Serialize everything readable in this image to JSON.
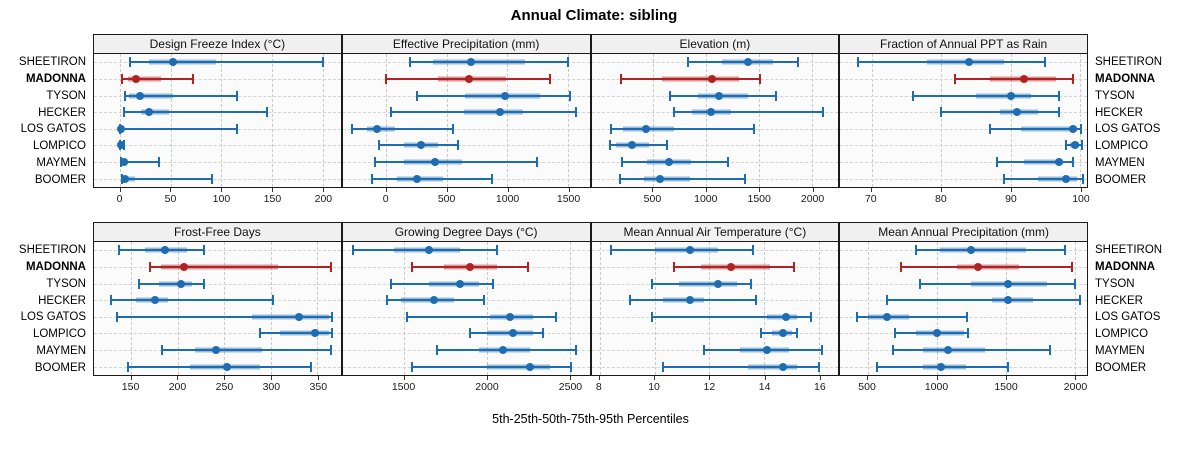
{
  "title": "Annual Climate: sibling",
  "footer": "5th-25th-50th-75th-95th Percentiles",
  "percentile_labels": [
    "5th",
    "25th",
    "50th",
    "75th",
    "95th"
  ],
  "colors": {
    "series": "#1e6db2",
    "highlight": "#b22222",
    "grid": "#cbcbcb",
    "strip_bg": "#f0f0f0",
    "panel_border": "#1a1a1a"
  },
  "sites": [
    {
      "name": "SHEETIRON",
      "highlight": false
    },
    {
      "name": "MADONNA",
      "highlight": true
    },
    {
      "name": "TYSON",
      "highlight": false
    },
    {
      "name": "HECKER",
      "highlight": false
    },
    {
      "name": "LOS GATOS",
      "highlight": false
    },
    {
      "name": "LOMPICO",
      "highlight": false
    },
    {
      "name": "MAYMEN",
      "highlight": false
    },
    {
      "name": "BOOMER",
      "highlight": false
    }
  ],
  "chart_data": [
    {
      "type": "segplot-percentiles",
      "title": "Design Freeze Index (°C)",
      "xlim": [
        -26,
        218
      ],
      "ticks": [
        0,
        50,
        100,
        150,
        200
      ],
      "series": [
        {
          "name": "SHEETIRON",
          "values": [
            10,
            28,
            52,
            95,
            200
          ]
        },
        {
          "name": "MADONNA",
          "values": [
            2,
            8,
            16,
            40,
            72
          ]
        },
        {
          "name": "TYSON",
          "values": [
            5,
            9,
            19,
            52,
            115
          ]
        },
        {
          "name": "HECKER",
          "values": [
            4,
            20,
            28,
            48,
            145
          ]
        },
        {
          "name": "LOS GATOS",
          "values": [
            0,
            0.5,
            1,
            3,
            115
          ]
        },
        {
          "name": "LOMPICO",
          "values": [
            0,
            0.5,
            1,
            2,
            4
          ]
        },
        {
          "name": "MAYMEN",
          "values": [
            1,
            2,
            4,
            8,
            38
          ]
        },
        {
          "name": "BOOMER",
          "values": [
            2,
            3,
            5,
            15,
            91
          ]
        }
      ]
    },
    {
      "type": "segplot-percentiles",
      "title": "Effective Precipitation (mm)",
      "xlim": [
        -360,
        1680
      ],
      "ticks": [
        0,
        500,
        1000,
        1500
      ],
      "series": [
        {
          "name": "SHEETIRON",
          "values": [
            200,
            390,
            700,
            1150,
            1500
          ]
        },
        {
          "name": "MADONNA",
          "values": [
            0,
            430,
            680,
            990,
            1350
          ]
        },
        {
          "name": "TYSON",
          "values": [
            250,
            650,
            980,
            1270,
            1520
          ]
        },
        {
          "name": "HECKER",
          "values": [
            40,
            640,
            940,
            1130,
            1570
          ]
        },
        {
          "name": "LOS GATOS",
          "values": [
            -280,
            -160,
            -75,
            70,
            550
          ]
        },
        {
          "name": "LOMPICO",
          "values": [
            -60,
            150,
            290,
            430,
            590
          ]
        },
        {
          "name": "MAYMEN",
          "values": [
            -90,
            150,
            400,
            630,
            1250
          ]
        },
        {
          "name": "BOOMER",
          "values": [
            -120,
            90,
            255,
            470,
            870
          ]
        }
      ]
    },
    {
      "type": "segplot-percentiles",
      "title": "Elevation (m)",
      "xlim": [
        -80,
        2250
      ],
      "ticks": [
        500,
        1000,
        1500,
        2000
      ],
      "series": [
        {
          "name": "SHEETIRON",
          "values": [
            830,
            1150,
            1400,
            1630,
            1870
          ]
        },
        {
          "name": "MADONNA",
          "values": [
            200,
            590,
            1060,
            1310,
            1510
          ]
        },
        {
          "name": "TYSON",
          "values": [
            660,
            930,
            1120,
            1400,
            1660
          ]
        },
        {
          "name": "HECKER",
          "values": [
            700,
            870,
            1050,
            1240,
            2110
          ]
        },
        {
          "name": "LOS GATOS",
          "values": [
            100,
            220,
            430,
            700,
            1450
          ]
        },
        {
          "name": "LOMPICO",
          "values": [
            90,
            150,
            300,
            460,
            630
          ]
        },
        {
          "name": "MAYMEN",
          "values": [
            210,
            440,
            650,
            860,
            1210
          ]
        },
        {
          "name": "BOOMER",
          "values": [
            190,
            420,
            570,
            850,
            1370
          ]
        }
      ]
    },
    {
      "type": "segplot-percentiles",
      "title": "Fraction of Annual PPT as Rain",
      "xlim": [
        65.5,
        101
      ],
      "ticks": [
        70,
        80,
        90,
        100
      ],
      "series": [
        {
          "name": "SHEETIRON",
          "values": [
            68,
            78,
            84,
            89,
            95
          ]
        },
        {
          "name": "MADONNA",
          "values": [
            82,
            87,
            92,
            96.5,
            99
          ]
        },
        {
          "name": "TYSON",
          "values": [
            76,
            85,
            90,
            93,
            97
          ]
        },
        {
          "name": "HECKER",
          "values": [
            80,
            88.5,
            91,
            94,
            97
          ]
        },
        {
          "name": "LOS GATOS",
          "values": [
            87,
            91.5,
            99,
            99.5,
            100.2
          ]
        },
        {
          "name": "LOMPICO",
          "values": [
            98,
            98.6,
            99.3,
            99.8,
            100.3
          ]
        },
        {
          "name": "MAYMEN",
          "values": [
            88,
            92,
            97,
            97.5,
            99
          ]
        },
        {
          "name": "BOOMER",
          "values": [
            89,
            94,
            98,
            99.5,
            100.4
          ]
        }
      ]
    },
    {
      "type": "segplot-percentiles",
      "title": "Frost-Free Days",
      "xlim": [
        110,
        375
      ],
      "ticks": [
        150,
        200,
        250,
        300,
        350
      ],
      "series": [
        {
          "name": "SHEETIRON",
          "values": [
            137,
            165,
            186,
            210,
            228
          ]
        },
        {
          "name": "MADONNA",
          "values": [
            170,
            182,
            207,
            308,
            365
          ]
        },
        {
          "name": "TYSON",
          "values": [
            158,
            180,
            203,
            215,
            228
          ]
        },
        {
          "name": "HECKER",
          "values": [
            128,
            155,
            175,
            190,
            302
          ]
        },
        {
          "name": "LOS GATOS",
          "values": [
            135,
            280,
            330,
            362,
            366
          ]
        },
        {
          "name": "LOMPICO",
          "values": [
            288,
            310,
            347,
            362,
            366
          ]
        },
        {
          "name": "MAYMEN",
          "values": [
            183,
            218,
            241,
            290,
            365
          ]
        },
        {
          "name": "BOOMER",
          "values": [
            147,
            213,
            253,
            288,
            343
          ]
        }
      ]
    },
    {
      "type": "segplot-percentiles",
      "title": "Growing Degree Days (°C)",
      "xlim": [
        1130,
        2620
      ],
      "ticks": [
        1500,
        2000,
        2500
      ],
      "series": [
        {
          "name": "SHEETIRON",
          "values": [
            1190,
            1440,
            1650,
            1840,
            2060
          ]
        },
        {
          "name": "MADONNA",
          "values": [
            1550,
            1740,
            1900,
            2060,
            2250
          ]
        },
        {
          "name": "TYSON",
          "values": [
            1420,
            1650,
            1840,
            1950,
            2040
          ]
        },
        {
          "name": "HECKER",
          "values": [
            1400,
            1480,
            1680,
            1800,
            1980
          ]
        },
        {
          "name": "LOS GATOS",
          "values": [
            1520,
            2020,
            2140,
            2280,
            2420
          ]
        },
        {
          "name": "LOMPICO",
          "values": [
            1900,
            2000,
            2160,
            2280,
            2340
          ]
        },
        {
          "name": "MAYMEN",
          "values": [
            1700,
            1950,
            2100,
            2260,
            2540
          ]
        },
        {
          "name": "BOOMER",
          "values": [
            1550,
            2000,
            2260,
            2380,
            2510
          ]
        }
      ]
    },
    {
      "type": "segplot-percentiles",
      "title": "Mean Annual Air Temperature (°C)",
      "xlim": [
        7.7,
        16.7
      ],
      "ticks": [
        8,
        10,
        12,
        14,
        16
      ],
      "series": [
        {
          "name": "SHEETIRON",
          "values": [
            8.4,
            10.0,
            11.3,
            12.3,
            13.6
          ]
        },
        {
          "name": "MADONNA",
          "values": [
            10.7,
            11.7,
            12.8,
            14.2,
            15.1
          ]
        },
        {
          "name": "TYSON",
          "values": [
            9.9,
            10.9,
            12.3,
            13.0,
            13.5
          ]
        },
        {
          "name": "HECKER",
          "values": [
            9.1,
            10.3,
            11.3,
            11.8,
            13.7
          ]
        },
        {
          "name": "LOS GATOS",
          "values": [
            9.9,
            14.1,
            14.8,
            15.2,
            15.7
          ]
        },
        {
          "name": "LOMPICO",
          "values": [
            13.9,
            14.3,
            14.7,
            15.0,
            15.2
          ]
        },
        {
          "name": "MAYMEN",
          "values": [
            11.8,
            13.1,
            14.1,
            14.9,
            16.1
          ]
        },
        {
          "name": "BOOMER",
          "values": [
            10.3,
            13.4,
            14.7,
            15.2,
            16.0
          ]
        }
      ]
    },
    {
      "type": "segplot-percentiles",
      "title": "Mean Annual Precipitation (mm)",
      "xlim": [
        300,
        2090
      ],
      "ticks": [
        500,
        1000,
        1500,
        2000
      ],
      "series": [
        {
          "name": "SHEETIRON",
          "values": [
            850,
            1020,
            1250,
            1650,
            1930
          ]
        },
        {
          "name": "MADONNA",
          "values": [
            740,
            1150,
            1300,
            1600,
            1980
          ]
        },
        {
          "name": "TYSON",
          "values": [
            880,
            1250,
            1520,
            1800,
            2000
          ]
        },
        {
          "name": "HECKER",
          "values": [
            640,
            1400,
            1520,
            1700,
            2040
          ]
        },
        {
          "name": "LOS GATOS",
          "values": [
            420,
            500,
            640,
            800,
            1220
          ]
        },
        {
          "name": "LOMPICO",
          "values": [
            700,
            850,
            1000,
            1200,
            1230
          ]
        },
        {
          "name": "MAYMEN",
          "values": [
            680,
            900,
            1080,
            1350,
            1820
          ]
        },
        {
          "name": "BOOMER",
          "values": [
            570,
            900,
            1030,
            1210,
            1520
          ]
        }
      ]
    }
  ]
}
